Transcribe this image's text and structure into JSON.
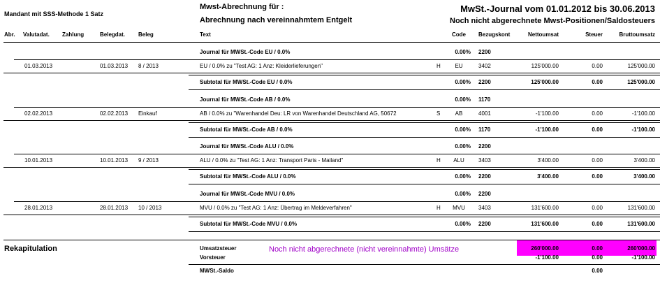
{
  "header": {
    "mandant": "Mandant mit SSS-Methode 1 Satz",
    "title1": "Mwst-Abrechnung für :",
    "title2": "Abrechnung nach vereinnahmtem Entgelt",
    "journal": "MwSt.-Journal vom 01.01.2012 bis 30.06.2013",
    "subtitle": "Noch nicht abgerechnete Mwst-Positionen/Saldosteuers"
  },
  "columns": [
    "Abr.",
    "Valutadat.",
    "Zahlung",
    "Belegdat.",
    "Beleg",
    "Text",
    "Code",
    "Bezugskont",
    "Nettoumsat",
    "Steuer",
    "Bruttoumsatz"
  ],
  "groups": [
    {
      "journal": {
        "label": "Journal für MWSt.-Code EU / 0.0%",
        "rate": "0.00%",
        "konto": "2200"
      },
      "entry": {
        "valutadat": "01.03.2013",
        "belegdat": "01.03.2013",
        "beleg": "8 / 2013",
        "text": "EU / 0.0% zu \"Test AG: 1 Anz: Kleiderlieferungen\"",
        "side": "H",
        "code": "EU",
        "konto": "3402",
        "netto": "125'000.00",
        "steuer": "0.00",
        "brutto": "125'000.00"
      },
      "subtotal": {
        "label": "Subtotal für MWSt.-Code EU / 0.0%",
        "rate": "0.00%",
        "konto": "2200",
        "netto": "125'000.00",
        "steuer": "0.00",
        "brutto": "125'000.00"
      }
    },
    {
      "journal": {
        "label": "Journal für MWSt.-Code AB / 0.0%",
        "rate": "0.00%",
        "konto": "1170"
      },
      "entry": {
        "valutadat": "02.02.2013",
        "belegdat": "02.02.2013",
        "beleg": "Einkauf",
        "text": "AB / 0.0% zu \"Warenhandel Deu: LR von Warenhandel Deutschland AG, 50672",
        "side": "S",
        "code": "AB",
        "konto": "4001",
        "netto": "-1'100.00",
        "steuer": "0.00",
        "brutto": "-1'100.00"
      },
      "subtotal": {
        "label": "Subtotal für MWSt.-Code AB / 0.0%",
        "rate": "0.00%",
        "konto": "1170",
        "netto": "-1'100.00",
        "steuer": "0.00",
        "brutto": "-1'100.00"
      }
    },
    {
      "journal": {
        "label": "Journal für MWSt.-Code ALU / 0.0%",
        "rate": "0.00%",
        "konto": "2200"
      },
      "entry": {
        "valutadat": "10.01.2013",
        "belegdat": "10.01.2013",
        "beleg": "9 / 2013",
        "text": "ALU / 0.0% zu \"Test AG: 1 Anz: Transport Paris - Mailand\"",
        "side": "H",
        "code": "ALU",
        "konto": "3403",
        "netto": "3'400.00",
        "steuer": "0.00",
        "brutto": "3'400.00"
      },
      "subtotal": {
        "label": "Subtotal für MWSt.-Code ALU / 0.0%",
        "rate": "0.00%",
        "konto": "2200",
        "netto": "3'400.00",
        "steuer": "0.00",
        "brutto": "3'400.00"
      }
    },
    {
      "journal": {
        "label": "Journal für MWSt.-Code MVU / 0.0%",
        "rate": "0.00%",
        "konto": "2200"
      },
      "entry": {
        "valutadat": "28.01.2013",
        "belegdat": "28.01.2013",
        "beleg": "10 / 2013",
        "text": "MVU / 0.0% zu \"Test AG: 1 Anz: Übertrag im Meldeverfahren\"",
        "side": "H",
        "code": "MVU",
        "konto": "3403",
        "netto": "131'600.00",
        "steuer": "0.00",
        "brutto": "131'600.00"
      },
      "subtotal": {
        "label": "Subtotal für MWSt.-Code MVU / 0.0%",
        "rate": "0.00%",
        "konto": "2200",
        "netto": "131'600.00",
        "steuer": "0.00",
        "brutto": "131'600.00"
      }
    }
  ],
  "rekap": {
    "title": "Rekapitulation",
    "note": "Noch nicht abgerechnete (nicht vereinnahmte) Umsätze",
    "rows": [
      {
        "label": "Umsatzsteuer",
        "netto": "260'000.00",
        "steuer": "0.00",
        "brutto": "260'000.00"
      },
      {
        "label": "Vorsteuer",
        "netto": "-1'100.00",
        "steuer": "0.00",
        "brutto": "-1'100.00"
      },
      {
        "label": "MWSt.-Saldo",
        "steuer": "0.00"
      }
    ]
  }
}
